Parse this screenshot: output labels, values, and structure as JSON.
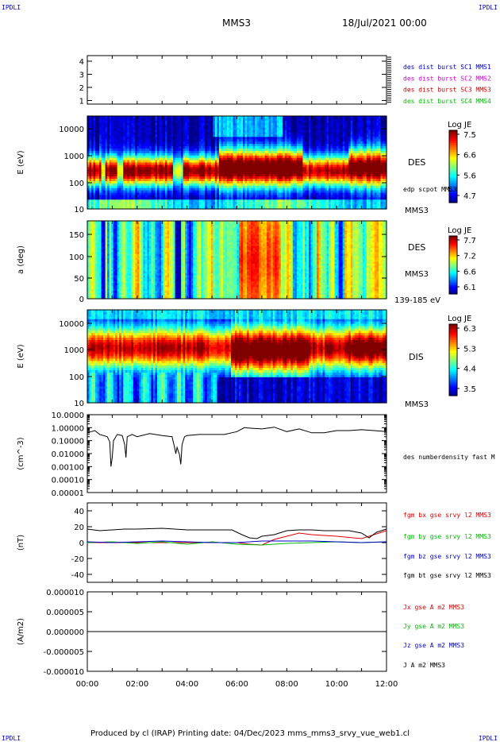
{
  "header": {
    "corner_left": "IPDLI",
    "corner_right": "IPDLI",
    "spacecraft": "MMS3",
    "date_time": "18/Jul/2021 00:00"
  },
  "footer": {
    "corner_left": "IPDLI",
    "corner_right": "IPDLI",
    "credit": "Produced by cl (IRAP)   Printing date: 04/Dec/2023   mms_mms3_srvy_vue_web1.cl"
  },
  "time_axis": {
    "start": "00:00",
    "end": "12:00",
    "tick_labels": [
      "00:00",
      "02:00",
      "04:00",
      "06:00",
      "08:00",
      "10:00",
      "12:00"
    ]
  },
  "chart_data": [
    {
      "type": "scatter",
      "panel": "burst",
      "y_ticks": [
        "4",
        "3",
        "2",
        "1"
      ],
      "ylim": [
        0.5,
        4.5
      ],
      "legend": [
        {
          "label": "des dist burst SC1 MMS1",
          "color": "#0000cc"
        },
        {
          "label": "des dist burst SC2 MMS2",
          "color": "#cc00cc"
        },
        {
          "label": "des dist burst SC3 MMS3",
          "color": "#cc0000"
        },
        {
          "label": "des dist burst SC4 MMS4",
          "color": "#00bb00"
        }
      ]
    },
    {
      "type": "heatmap",
      "panel": "des_energy",
      "ylabel": "E (eV)",
      "y_ticks": [
        "10000",
        "1000",
        "100",
        "10"
      ],
      "right_labels": [
        "DES",
        "edp scpot MMS3",
        "MMS3"
      ],
      "colorbar": {
        "title": "Log JE",
        "ticks": [
          "7.5",
          "6.6",
          "5.6",
          "4.7"
        ]
      }
    },
    {
      "type": "heatmap",
      "panel": "des_pitch",
      "ylabel": "a (deg)",
      "y_ticks": [
        "150",
        "100",
        "50",
        "0"
      ],
      "right_labels": [
        "DES",
        "MMS3",
        "139-185 eV"
      ],
      "colorbar": {
        "title": "Log JE",
        "ticks": [
          "7.7",
          "7.2",
          "6.6",
          "6.1"
        ]
      }
    },
    {
      "type": "heatmap",
      "panel": "dis_energy",
      "ylabel": "E (eV)",
      "y_ticks": [
        "10000",
        "1000",
        "100",
        "10"
      ],
      "right_labels": [
        "DIS",
        "MMS3"
      ],
      "colorbar": {
        "title": "Log JE",
        "ticks": [
          "6.3",
          "5.3",
          "4.4",
          "3.5"
        ]
      }
    },
    {
      "type": "line",
      "panel": "density",
      "ylabel": "(cm^-3)",
      "y_ticks": [
        "10.0000",
        "1.00000",
        "0.10000",
        "0.01000",
        "0.00100",
        "0.00010",
        "0.00001"
      ],
      "ylim": [
        1e-05,
        10
      ],
      "log": true,
      "series": [
        {
          "name": "des numberdensity fast M",
          "color": "#000000",
          "x": [
            0.0,
            0.3,
            0.5,
            0.8,
            0.9,
            0.95,
            1.0,
            1.05,
            1.2,
            1.4,
            1.5,
            1.55,
            1.6,
            1.8,
            2.0,
            2.5,
            3.0,
            3.4,
            3.5,
            3.55,
            3.6,
            3.7,
            3.75,
            3.8,
            3.9,
            4.0,
            4.5,
            5.0,
            5.5,
            6.0,
            6.3,
            6.6,
            7.0,
            7.5,
            8.0,
            8.5,
            9.0,
            9.5,
            10.0,
            10.5,
            11.0,
            11.5,
            12.0
          ],
          "y": [
            0.4,
            0.6,
            0.3,
            0.2,
            0.08,
            0.001,
            0.005,
            0.1,
            0.3,
            0.25,
            0.05,
            0.005,
            0.2,
            0.3,
            0.2,
            0.35,
            0.25,
            0.2,
            0.03,
            0.01,
            0.03,
            0.008,
            0.0015,
            0.05,
            0.2,
            0.25,
            0.3,
            0.3,
            0.3,
            0.5,
            1.0,
            0.9,
            0.8,
            1.1,
            0.5,
            0.8,
            0.4,
            0.4,
            0.6,
            0.6,
            0.7,
            0.6,
            0.5
          ]
        }
      ]
    },
    {
      "type": "line",
      "panel": "bfield",
      "ylabel": "(nT)",
      "y_ticks": [
        "40",
        "20",
        "0",
        "-20",
        "-40"
      ],
      "ylim": [
        -50,
        50
      ],
      "series": [
        {
          "name": "fgm bx gse srvy l2 MMS3",
          "color": "#dd0000",
          "x": [
            0,
            1,
            2,
            3,
            4,
            5,
            5.5,
            6,
            6.5,
            7,
            7.5,
            8,
            8.5,
            9,
            10,
            11,
            12
          ],
          "y": [
            0,
            0,
            0,
            0,
            0,
            0,
            0,
            0,
            -2,
            -3,
            4,
            8,
            12,
            10,
            8,
            5,
            15
          ]
        },
        {
          "name": "fgm by gse srvy l2 MMS3",
          "color": "#00bb00",
          "x": [
            0,
            1,
            2,
            3,
            4,
            5,
            6,
            7,
            8,
            9,
            10,
            11,
            12
          ],
          "y": [
            0,
            1,
            -1,
            1,
            -2,
            1,
            -2,
            -3,
            -1,
            0,
            1,
            0,
            1
          ]
        },
        {
          "name": "fgm bz gse srvy l2 MMS3",
          "color": "#0000cc",
          "x": [
            0,
            1,
            2,
            3,
            4,
            5,
            6,
            7,
            8,
            9,
            10,
            11,
            12
          ],
          "y": [
            1,
            0,
            1,
            2,
            1,
            0,
            0,
            2,
            2,
            2,
            1,
            0,
            1
          ]
        },
        {
          "name": "fgm bt gse srvy l2 MMS3",
          "color": "#000000",
          "x": [
            0,
            0.5,
            1,
            1.5,
            2,
            3,
            3.5,
            4,
            5,
            5.8,
            6.2,
            6.5,
            6.8,
            7,
            7.5,
            8,
            8.5,
            9,
            9.5,
            10,
            10.5,
            11,
            11.3,
            11.6,
            12
          ],
          "y": [
            17,
            15,
            16,
            17,
            17,
            18,
            17,
            16,
            16,
            16,
            10,
            6,
            5,
            8,
            10,
            15,
            16,
            16,
            15,
            15,
            15,
            12,
            6,
            13,
            17
          ]
        }
      ]
    },
    {
      "type": "line",
      "panel": "current",
      "ylabel": "(A/m2)",
      "y_ticks": [
        "0.000010",
        "0.000005",
        "0.000000",
        "-0.000005",
        "-0.000010"
      ],
      "ylim": [
        -1e-05,
        1e-05
      ],
      "series": [
        {
          "name": "Jx gse A m2 MMS3",
          "color": "#dd0000",
          "x": [
            0,
            12
          ],
          "y": [
            0,
            0
          ]
        },
        {
          "name": "Jy gse A m2 MMS3",
          "color": "#00bb00",
          "x": [
            0,
            12
          ],
          "y": [
            0,
            0
          ]
        },
        {
          "name": "Jz gse A m2 MMS3",
          "color": "#0000cc",
          "x": [
            0,
            12
          ],
          "y": [
            0,
            0
          ]
        },
        {
          "name": "J A m2 MMS3",
          "color": "#000000",
          "x": [
            0,
            2,
            3,
            4,
            6,
            7,
            8,
            9,
            10,
            11,
            12
          ],
          "y": [
            0,
            0,
            0,
            0,
            0,
            0,
            0,
            0,
            0,
            0,
            0
          ]
        }
      ]
    }
  ]
}
